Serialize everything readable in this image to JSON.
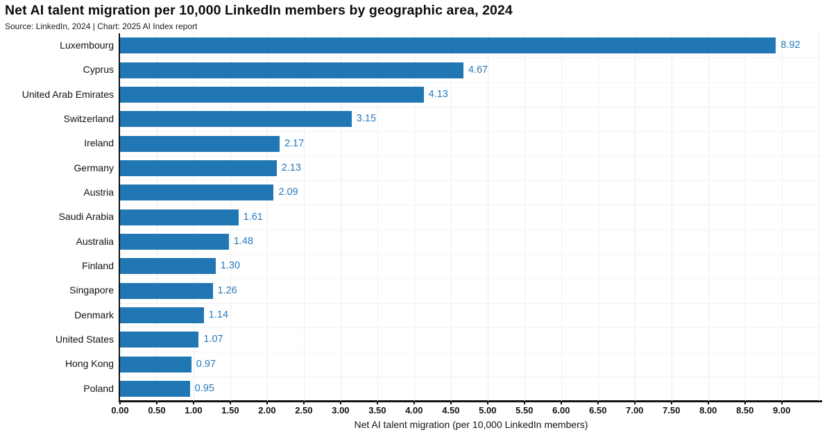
{
  "title": "Net AI talent migration per 10,000 LinkedIn members by geographic area, 2024",
  "subtitle": "Source: LinkedIn, 2024 | Chart: 2025 AI Index report",
  "chart_data": {
    "type": "bar",
    "orientation": "horizontal",
    "title": "Net AI talent migration per 10,000 LinkedIn members by geographic area, 2024",
    "subtitle": "Source: LinkedIn, 2024 | Chart: 2025 AI Index report",
    "categories": [
      "Luxembourg",
      "Cyprus",
      "United Arab Emirates",
      "Switzerland",
      "Ireland",
      "Germany",
      "Austria",
      "Saudi Arabia",
      "Australia",
      "Finland",
      "Singapore",
      "Denmark",
      "United States",
      "Hong Kong",
      "Poland"
    ],
    "values": [
      8.92,
      4.67,
      4.13,
      3.15,
      2.17,
      2.13,
      2.09,
      1.61,
      1.48,
      1.3,
      1.26,
      1.14,
      1.07,
      0.97,
      0.95
    ],
    "value_labels": [
      "8.92",
      "4.67",
      "4.13",
      "3.15",
      "2.17",
      "2.13",
      "2.09",
      "1.61",
      "1.48",
      "1.30",
      "1.26",
      "1.14",
      "1.07",
      "0.97",
      "0.95"
    ],
    "xlabel": "Net AI talent migration (per 10,000 LinkedIn members)",
    "ylabel": "",
    "xtick_labels": [
      "0.00",
      "0.50",
      "1.00",
      "1.50",
      "2.00",
      "2.50",
      "3.00",
      "3.50",
      "4.00",
      "4.50",
      "5.00",
      "5.50",
      "6.00",
      "6.50",
      "7.00",
      "7.50",
      "8.00",
      "8.50",
      "9.00"
    ],
    "xtick_step": 0.5,
    "xlim": [
      0,
      9.55
    ],
    "grid": "light vertical every 0.5 and light horizontal between rows",
    "legend": "none",
    "colors": {
      "bar": "#2077b4",
      "value_label": "#2679bb",
      "title": "#0d0d0d",
      "subtitle": "#1a1a1a",
      "tick_label": "#111111",
      "axis_spine": "#111111",
      "grid_vertical": "#ececec",
      "grid_horizontal": "#f2f2f2",
      "background": "#ffffff"
    }
  }
}
